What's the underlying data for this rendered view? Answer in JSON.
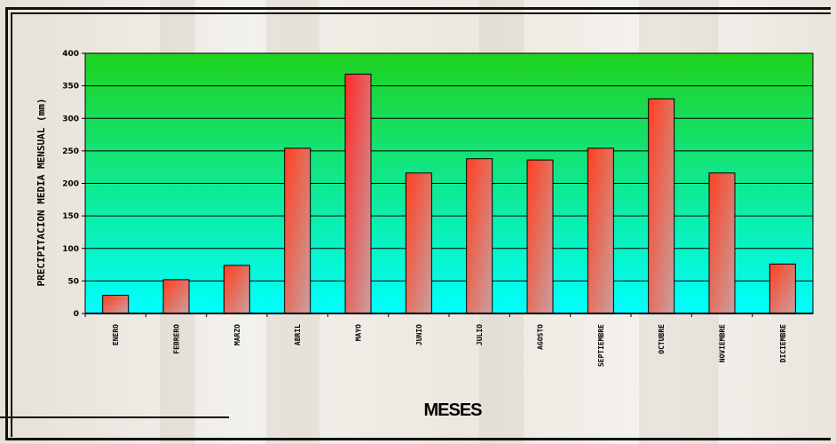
{
  "chart_data": {
    "type": "bar",
    "categories": [
      "ENERO",
      "FEBRERO",
      "MARZO",
      "ABRIL",
      "MAYO",
      "JUNIO",
      "JULIO",
      "AGOSTO",
      "SEPTIEMBRE",
      "OCTUBRE",
      "NOVIEMBRE",
      "DICIEMBRE"
    ],
    "values": [
      28,
      52,
      74,
      254,
      368,
      216,
      238,
      236,
      254,
      330,
      216,
      76
    ],
    "title": "",
    "xlabel": "MESES",
    "ylabel": "PRECIPITACION MEDIA MENSUAL (mm)",
    "ylim": [
      0,
      400
    ],
    "yticks": [
      0,
      50,
      100,
      150,
      200,
      250,
      300,
      350,
      400
    ],
    "grid": true,
    "legend": "none",
    "colors": {
      "plot_top": "#1fd21f",
      "plot_bottom": "#00ffff",
      "bar_fill_top": "#ff4020",
      "bar_fill_bottom": "#c8a0a0",
      "bar_highlight": "#ff2a2a",
      "bar_outline": "#000000"
    }
  }
}
